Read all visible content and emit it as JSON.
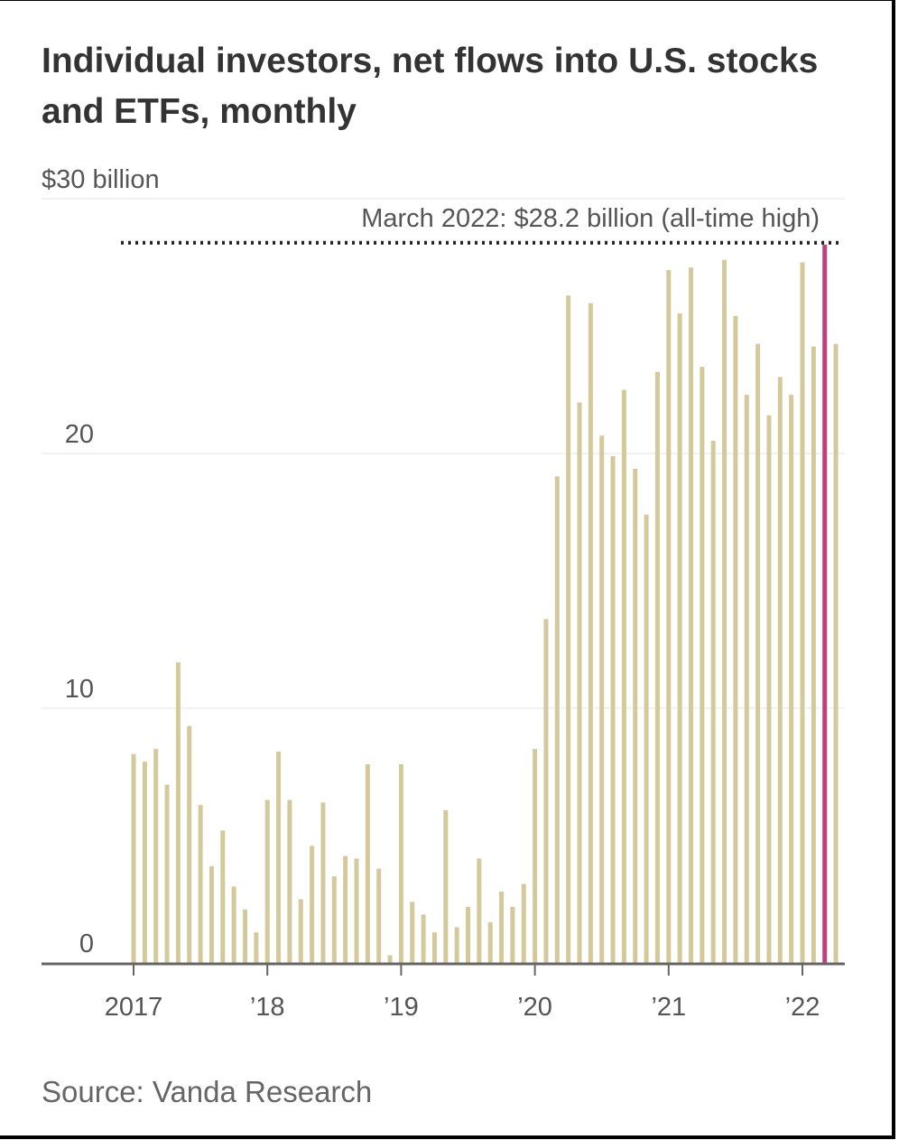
{
  "title": "Individual investors, net flows into U.S. stocks and ETFs, monthly",
  "source": "Source: Vanda Research",
  "colors": {
    "bar": "#d3c99a",
    "highlight": "#c2407e",
    "grid": "#e6e6e6",
    "axis": "#666666",
    "text": "#333333"
  },
  "chart_data": {
    "type": "bar",
    "x_start": "2017-01",
    "x_end": "2022-04",
    "y_ticks": [
      {
        "value": 0,
        "label": "0"
      },
      {
        "value": 10,
        "label": "10"
      },
      {
        "value": 20,
        "label": "20"
      },
      {
        "value": 30,
        "label": "$30 billion"
      }
    ],
    "x_ticks": [
      {
        "month": "2017-01",
        "label": "2017"
      },
      {
        "month": "2018-01",
        "label": "’18"
      },
      {
        "month": "2019-01",
        "label": "’19"
      },
      {
        "month": "2020-01",
        "label": "’20"
      },
      {
        "month": "2021-01",
        "label": "’21"
      },
      {
        "month": "2022-01",
        "label": "’22"
      }
    ],
    "ylim": [
      0,
      30
    ],
    "grid": true,
    "annotation": {
      "text": "March 2022: $28.2 billion (all-time high)",
      "value": 28.2,
      "month": "2022-03"
    },
    "series": [
      {
        "highlight_month": "2022-03",
        "values": [
          8.2,
          7.9,
          8.4,
          7.0,
          11.8,
          9.3,
          6.2,
          3.8,
          5.2,
          3.0,
          2.1,
          1.2,
          6.4,
          8.3,
          6.4,
          2.5,
          4.6,
          6.3,
          3.4,
          4.2,
          4.1,
          7.8,
          3.7,
          0.3,
          7.8,
          2.4,
          1.9,
          1.2,
          6.0,
          1.4,
          2.2,
          4.1,
          1.6,
          2.8,
          2.2,
          3.1,
          8.4,
          13.5,
          19.1,
          26.2,
          22.0,
          25.9,
          20.7,
          19.9,
          22.5,
          19.4,
          17.6,
          23.2,
          27.2,
          25.5,
          27.3,
          23.4,
          20.5,
          27.6,
          25.4,
          22.3,
          24.3,
          21.5,
          23.0,
          22.3,
          27.5,
          24.2,
          28.2,
          24.3
        ]
      }
    ]
  }
}
